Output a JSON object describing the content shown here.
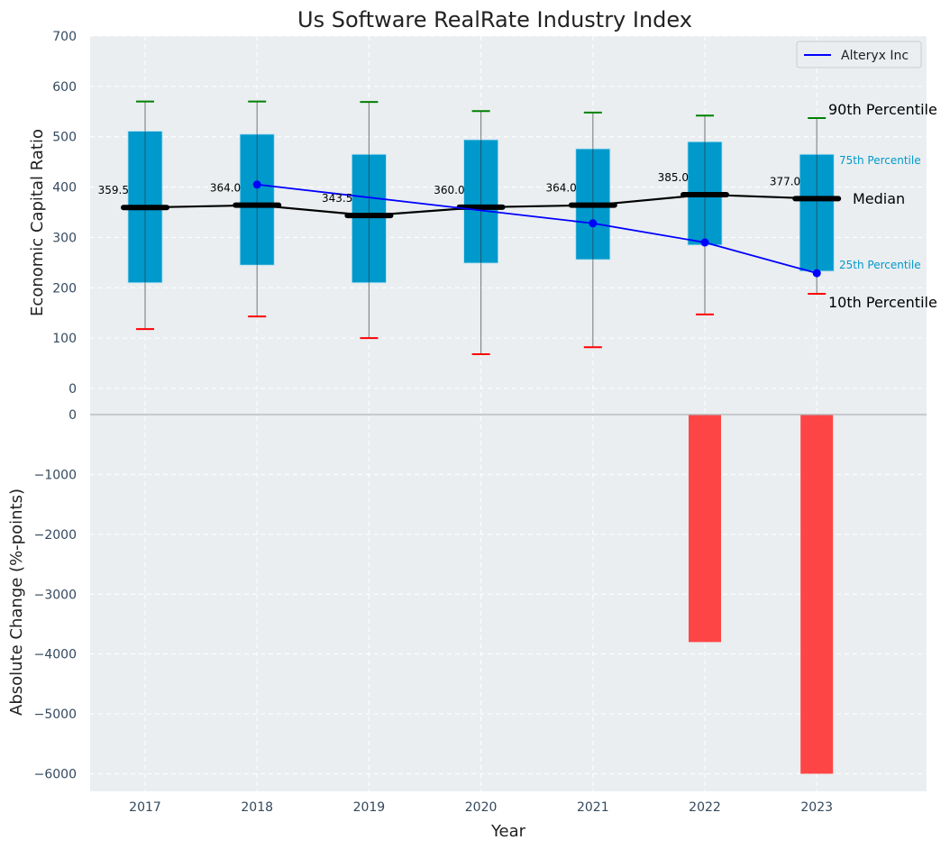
{
  "chart_data": [
    {
      "type": "box",
      "title": "Us Software RealRate Industry Index",
      "xlabel": "",
      "ylabel": "Economic Capital Ratio",
      "ylim": [
        0,
        700
      ],
      "yticks": [
        0,
        100,
        200,
        300,
        400,
        500,
        600,
        700
      ],
      "grid": true,
      "categories": [
        "2017",
        "2018",
        "2019",
        "2020",
        "2021",
        "2022",
        "2023"
      ],
      "boxes": [
        {
          "year": "2017",
          "p10": 118,
          "p25": 210,
          "median": 359.5,
          "p75": 511,
          "p90": 570
        },
        {
          "year": "2018",
          "p10": 143,
          "p25": 245,
          "median": 364.0,
          "p75": 505,
          "p90": 570
        },
        {
          "year": "2019",
          "p10": 100,
          "p25": 210,
          "median": 343.5,
          "p75": 465,
          "p90": 569
        },
        {
          "year": "2020",
          "p10": 68,
          "p25": 249,
          "median": 360.0,
          "p75": 494,
          "p90": 551
        },
        {
          "year": "2021",
          "p10": 82,
          "p25": 256,
          "median": 364.0,
          "p75": 476,
          "p90": 548
        },
        {
          "year": "2022",
          "p10": 147,
          "p25": 285,
          "median": 385.0,
          "p75": 490,
          "p90": 542
        },
        {
          "year": "2023",
          "p10": 188,
          "p25": 233,
          "median": 377.0,
          "p75": 465,
          "p90": 537
        }
      ],
      "median_labels": [
        "359.5",
        "364.0",
        "343.5",
        "360.0",
        "364.0",
        "385.0",
        "377.0"
      ],
      "series": [
        {
          "name": "Alteryx Inc",
          "color": "#0000ff",
          "points": [
            {
              "x": "2018",
              "y": 405
            },
            {
              "x": "2021",
              "y": 328
            },
            {
              "x": "2022",
              "y": 290
            },
            {
              "x": "2023",
              "y": 229
            }
          ]
        }
      ],
      "legend": {
        "entries": [
          "Alteryx Inc"
        ],
        "placement": "top-right"
      },
      "annotations": {
        "p90": "90th Percentile",
        "p75": "75th Percentile",
        "median": "Median",
        "p25": "25th Percentile",
        "p10": "10th Percentile"
      },
      "colors": {
        "box": "#0099cc",
        "p90_cap": "#008000",
        "p10_cap": "#ff0000",
        "median": "#000000",
        "background": "#eaeef0"
      }
    },
    {
      "type": "bar",
      "title": "",
      "xlabel": "Year",
      "ylabel": "Absolute Change (%-points)",
      "ylim": [
        -6300,
        0
      ],
      "yticks": [
        0,
        -1000,
        -2000,
        -3000,
        -4000,
        -5000,
        -6000
      ],
      "ytick_labels": [
        "0",
        "−1000",
        "−2000",
        "−3000",
        "−4000",
        "−5000",
        "−6000"
      ],
      "grid": true,
      "categories": [
        "2017",
        "2018",
        "2019",
        "2020",
        "2021",
        "2022",
        "2023"
      ],
      "values": [
        null,
        null,
        null,
        null,
        null,
        -3800,
        -6000
      ],
      "bar_color": "#ff3b3b"
    }
  ]
}
